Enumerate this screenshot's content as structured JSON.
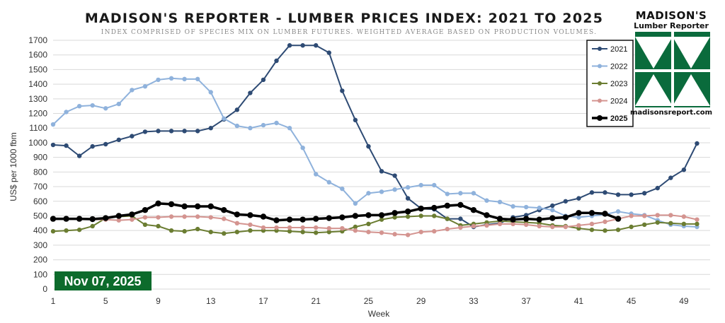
{
  "chart_data": {
    "type": "line",
    "title": "MADISON'S REPORTER - LUMBER PRICES INDEX: 2021 TO 2025",
    "subtitle": "INDEX COMPRISED OF SPECIES MIX ON LUMBER FUTURES. WEIGHTED AVERAGE BASED ON PRODUCTION VOLUMES.",
    "xlabel": "Week",
    "ylabel": "US$ per 1000 fbm",
    "xlim": [
      1,
      51
    ],
    "ylim": [
      0,
      1700
    ],
    "y_ticks": [
      0,
      100,
      200,
      300,
      400,
      500,
      600,
      700,
      800,
      900,
      1000,
      1100,
      1200,
      1300,
      1400,
      1500,
      1600,
      1700
    ],
    "x_ticks": [
      1,
      5,
      9,
      13,
      17,
      21,
      25,
      29,
      33,
      37,
      41,
      45,
      49
    ],
    "grid": "horizontal",
    "legend_position": "top-right",
    "date_label": "Nov 07, 2025",
    "series": [
      {
        "name": "2021",
        "color": "#2e4b74",
        "values": [
          985,
          980,
          910,
          975,
          990,
          1020,
          1045,
          1075,
          1080,
          1080,
          1080,
          1080,
          1100,
          1160,
          1225,
          1340,
          1430,
          1560,
          1665,
          1665,
          1665,
          1615,
          1355,
          1155,
          975,
          805,
          775,
          620,
          550,
          545,
          480,
          480,
          425,
          440,
          450,
          490,
          505,
          540,
          570,
          600,
          620,
          660,
          660,
          645,
          645,
          655,
          690,
          760,
          815,
          995
        ]
      },
      {
        "name": "2022",
        "color": "#8fb2dc",
        "values": [
          1125,
          1210,
          1250,
          1255,
          1235,
          1265,
          1360,
          1385,
          1430,
          1440,
          1435,
          1435,
          1345,
          1165,
          1115,
          1100,
          1120,
          1135,
          1100,
          965,
          785,
          730,
          685,
          585,
          655,
          665,
          680,
          695,
          710,
          710,
          650,
          655,
          655,
          605,
          595,
          565,
          560,
          555,
          540,
          500,
          490,
          500,
          510,
          530,
          515,
          505,
          470,
          440,
          430,
          425
        ]
      },
      {
        "name": "2023",
        "color": "#6b7d32",
        "values": [
          395,
          400,
          405,
          430,
          485,
          495,
          500,
          440,
          430,
          400,
          395,
          410,
          390,
          380,
          390,
          400,
          400,
          400,
          395,
          390,
          385,
          390,
          395,
          425,
          445,
          475,
          490,
          495,
          500,
          500,
          480,
          435,
          445,
          455,
          465,
          460,
          455,
          450,
          435,
          430,
          415,
          405,
          400,
          405,
          425,
          440,
          455,
          450,
          445,
          445
        ]
      },
      {
        "name": "2024",
        "color": "#d49490",
        "values": [
          480,
          480,
          480,
          475,
          475,
          470,
          475,
          490,
          490,
          495,
          495,
          495,
          490,
          480,
          450,
          440,
          420,
          420,
          420,
          420,
          420,
          415,
          415,
          400,
          390,
          385,
          375,
          370,
          390,
          395,
          410,
          420,
          430,
          435,
          445,
          445,
          440,
          430,
          425,
          425,
          435,
          445,
          460,
          480,
          500,
          500,
          505,
          505,
          495,
          475
        ]
      },
      {
        "name": "2025",
        "color": "#000000",
        "values": [
          480,
          480,
          480,
          478,
          485,
          500,
          510,
          540,
          585,
          580,
          565,
          565,
          565,
          540,
          510,
          505,
          495,
          470,
          475,
          475,
          480,
          485,
          490,
          500,
          505,
          505,
          520,
          530,
          550,
          555,
          570,
          575,
          540,
          505,
          480,
          475,
          480,
          475,
          485,
          490,
          520,
          520,
          515,
          480
        ]
      }
    ]
  },
  "logo": {
    "line1": "MADISON'S",
    "line2": "Lumber Reporter",
    "url": "madisonsreport.com",
    "color": "#0a6b3c"
  }
}
